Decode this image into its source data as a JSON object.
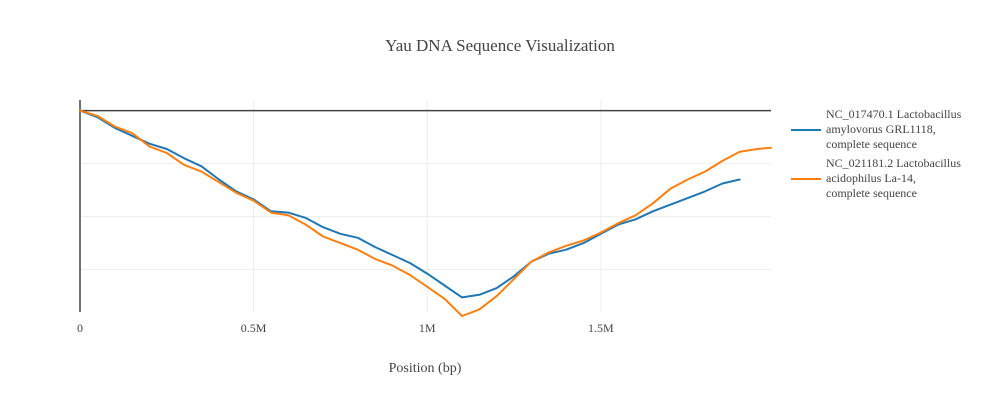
{
  "chart_data": {
    "type": "line",
    "title": "Yau DNA Sequence Visualization",
    "xlabel": "Position (bp)",
    "ylabel": "",
    "xlim": [
      0,
      1990000
    ],
    "ylim": [
      -7.6,
      0.4
    ],
    "x_ticks": [
      {
        "value": 0,
        "label": "0"
      },
      {
        "value": 500000,
        "label": "0.5M"
      },
      {
        "value": 1000000,
        "label": "1M"
      },
      {
        "value": 1500000,
        "label": "1.5M"
      }
    ],
    "y_gridlines": [
      0,
      -2,
      -4,
      -6
    ],
    "y_tick_labels_visible": false,
    "legend_position": "right",
    "series": [
      {
        "name": "NC_017470.1 Lactobacillus amylovorus GRL1118, complete sequence",
        "legend_lines": [
          "NC_017470.1 Lactobacillus",
          "amylovorus GRL1118,",
          "complete sequence"
        ],
        "color": "#1f77b4",
        "x": [
          0,
          50000,
          100000,
          150000,
          200000,
          250000,
          300000,
          350000,
          400000,
          450000,
          500000,
          550000,
          600000,
          650000,
          700000,
          750000,
          800000,
          850000,
          900000,
          950000,
          1000000,
          1050000,
          1100000,
          1150000,
          1200000,
          1250000,
          1300000,
          1350000,
          1400000,
          1450000,
          1500000,
          1550000,
          1600000,
          1650000,
          1700000,
          1750000,
          1800000,
          1850000,
          1900000
        ],
        "y": [
          0,
          -0.25,
          -0.65,
          -0.95,
          -1.25,
          -1.45,
          -1.8,
          -2.1,
          -2.6,
          -3.05,
          -3.35,
          -3.8,
          -3.85,
          -4.05,
          -4.4,
          -4.65,
          -4.8,
          -5.15,
          -5.45,
          -5.75,
          -6.15,
          -6.6,
          -7.05,
          -6.95,
          -6.7,
          -6.25,
          -5.7,
          -5.4,
          -5.25,
          -5.0,
          -4.65,
          -4.3,
          -4.1,
          -3.8,
          -3.55,
          -3.3,
          -3.05,
          -2.75,
          -2.6
        ]
      },
      {
        "name": "NC_021181.2 Lactobacillus acidophilus La-14, complete sequence",
        "legend_lines": [
          "NC_021181.2 Lactobacillus",
          "acidophilus La-14,",
          "complete sequence"
        ],
        "color": "#ff7f0e",
        "x": [
          0,
          50000,
          100000,
          150000,
          200000,
          250000,
          300000,
          350000,
          400000,
          450000,
          500000,
          550000,
          600000,
          650000,
          700000,
          750000,
          800000,
          850000,
          900000,
          950000,
          1000000,
          1050000,
          1100000,
          1150000,
          1200000,
          1250000,
          1300000,
          1350000,
          1400000,
          1450000,
          1500000,
          1550000,
          1600000,
          1650000,
          1700000,
          1750000,
          1800000,
          1850000,
          1900000,
          1950000,
          1990000
        ],
        "y": [
          0,
          -0.2,
          -0.6,
          -0.85,
          -1.35,
          -1.6,
          -2.05,
          -2.3,
          -2.7,
          -3.1,
          -3.4,
          -3.85,
          -3.95,
          -4.3,
          -4.75,
          -5.0,
          -5.25,
          -5.6,
          -5.85,
          -6.2,
          -6.65,
          -7.1,
          -7.75,
          -7.5,
          -7.0,
          -6.35,
          -5.7,
          -5.35,
          -5.1,
          -4.9,
          -4.6,
          -4.25,
          -3.95,
          -3.5,
          -2.95,
          -2.6,
          -2.3,
          -1.9,
          -1.55,
          -1.45,
          -1.4
        ]
      }
    ]
  }
}
